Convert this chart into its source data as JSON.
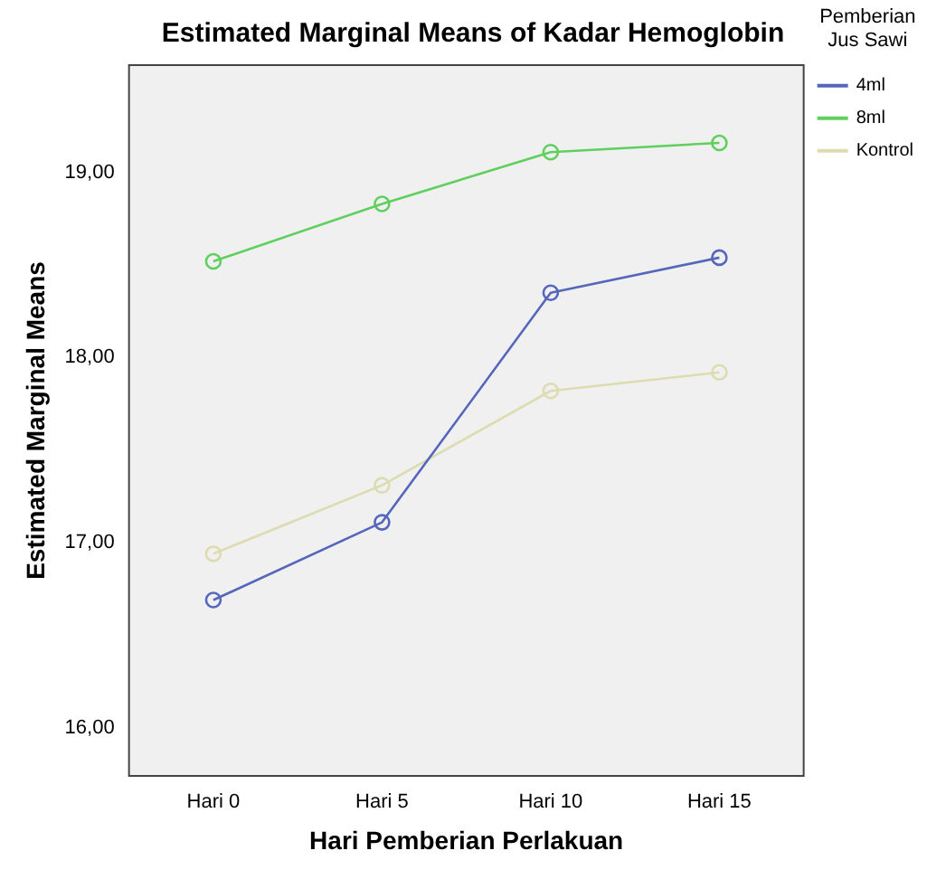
{
  "chart_data": {
    "type": "line",
    "title": "Estimated Marginal Means of Kadar Hemoglobin",
    "xlabel": "Hari Pemberian Perlakuan",
    "ylabel": "Estimated Marginal Means",
    "legend_title": "Pemberian Jus Sawi",
    "categories": [
      "Hari 0",
      "Hari 5",
      "Hari 10",
      "Hari 15"
    ],
    "series": [
      {
        "name": "4ml",
        "color": "#5566bb",
        "values": [
          16.69,
          17.11,
          18.35,
          18.54
        ]
      },
      {
        "name": "8ml",
        "color": "#5fcf5f",
        "values": [
          18.52,
          18.83,
          19.11,
          19.16
        ]
      },
      {
        "name": "Kontrol",
        "color": "#dcdcb0",
        "values": [
          16.94,
          17.31,
          17.82,
          17.92
        ]
      }
    ],
    "ylim": [
      15.74,
      19.58
    ],
    "yticks": [
      {
        "value": 16,
        "label": "16,00"
      },
      {
        "value": 17,
        "label": "17,00"
      },
      {
        "value": 18,
        "label": "18,00"
      },
      {
        "value": 19,
        "label": "19,00"
      }
    ],
    "grid": false,
    "legend": "right",
    "marker": "circle",
    "line_style": "solid"
  }
}
